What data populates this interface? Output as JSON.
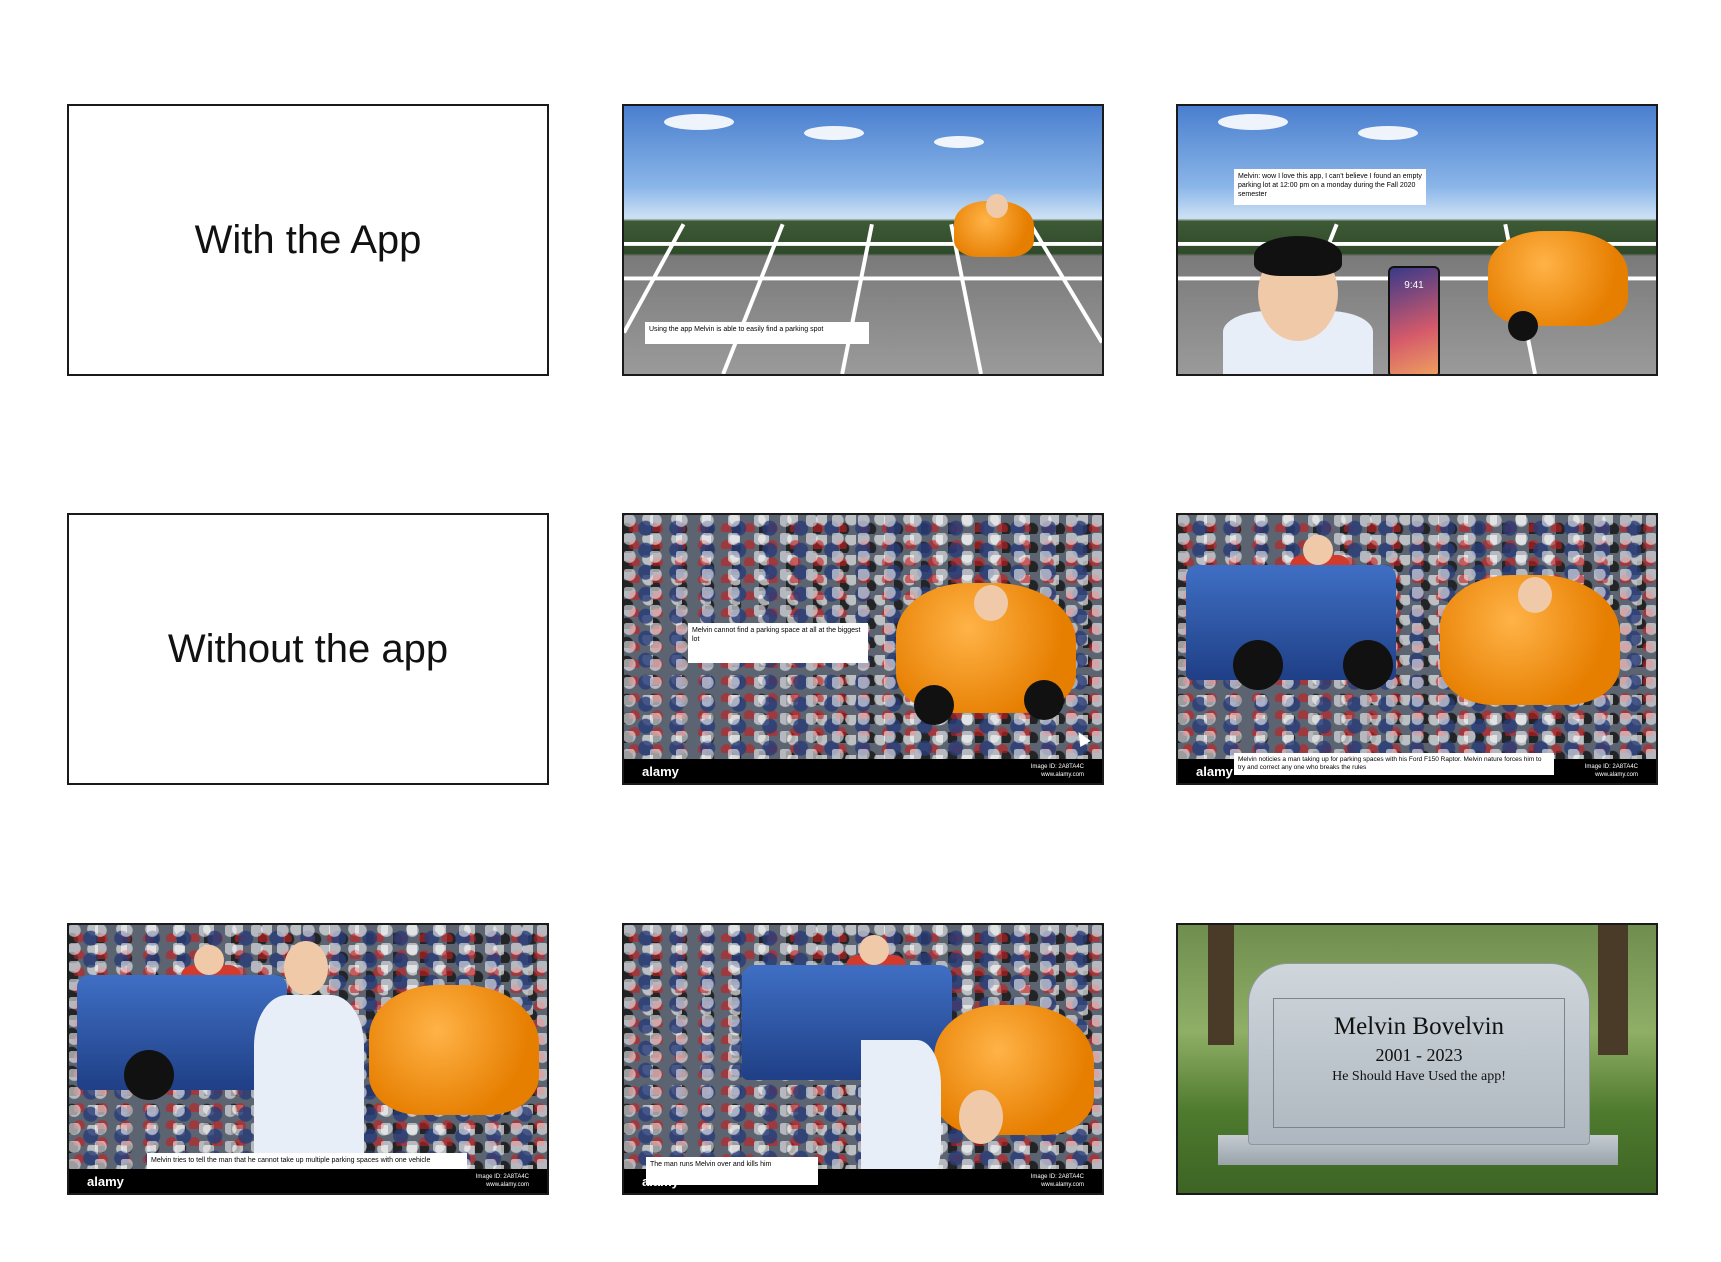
{
  "slides": {
    "s1": {
      "title": "With the App"
    },
    "s2": {
      "caption": "Using the app Melvin is able to easily find a parking spot"
    },
    "s3": {
      "caption": "Melvin: wow I love this app, I can't believe I found an empty parking lot at 12:00 pm on a monday during the Fall 2020 semester",
      "phone_time": "9:41"
    },
    "s4": {
      "title": "Without the app"
    },
    "s5": {
      "caption": "Melvin cannot find a parking space at all at the biggest lot",
      "logo": "alamy",
      "url": "www.alamy.com",
      "image_id": "Image ID: 2A8TA4C"
    },
    "s6": {
      "caption": "Melvin noticies a man taking up for parking spaces with his Ford F150 Raptor. Melvin nature forces him to try and correct any one who breaks the rules",
      "logo": "alamy",
      "url": "www.alamy.com",
      "image_id": "Image ID: 2A8TA4C"
    },
    "s7": {
      "caption": "Melvin tries to tell the man that he cannot take up multiple parking spaces with one vehicle",
      "logo": "alamy",
      "url": "www.alamy.com",
      "image_id": "Image ID: 2A8TA4C"
    },
    "s8": {
      "caption": "The man runs Melvin over and kills him",
      "logo": "alamy",
      "url": "www.alamy.com",
      "image_id": "Image ID: 2A8TA4C"
    },
    "s9": {
      "name": "Melvin Bovelvin",
      "years": "2001 - 2023",
      "epitaph": "He Should Have Used the app!"
    }
  },
  "colors": {
    "border": "#1a1a1a",
    "car": "#e67e00",
    "truck": "#1f3f86"
  }
}
